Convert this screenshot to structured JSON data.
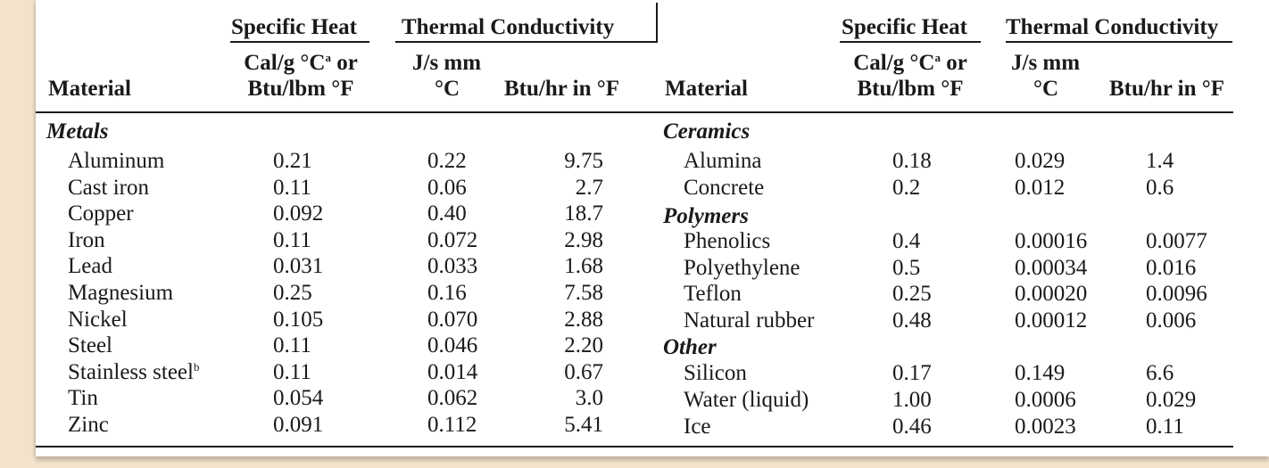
{
  "headers": {
    "group_specific_heat": "Specific Heat",
    "group_thermal_conductivity": "Thermal Conductivity",
    "material": "Material",
    "cal_line1": "Cal/g °C",
    "cal_sup": "a",
    "cal_or": " or",
    "cal_line2": "Btu/lbm °F",
    "js_line1": "J/s mm",
    "js_line2": "°C",
    "btu": "Btu/hr in °F"
  },
  "left": {
    "section": "Metals",
    "rows": [
      {
        "name": "Aluminum",
        "sup": "",
        "sh": "0.21",
        "js": "0.22",
        "btu": "9.75"
      },
      {
        "name": "Cast iron",
        "sup": "",
        "sh": "0.11",
        "js": "0.06",
        "btu": "2.7"
      },
      {
        "name": "Copper",
        "sup": "",
        "sh": "0.092",
        "js": "0.40",
        "btu": "18.7"
      },
      {
        "name": "Iron",
        "sup": "",
        "sh": "0.11",
        "js": "0.072",
        "btu": "2.98"
      },
      {
        "name": "Lead",
        "sup": "",
        "sh": "0.031",
        "js": "0.033",
        "btu": "1.68"
      },
      {
        "name": "Magnesium",
        "sup": "",
        "sh": "0.25",
        "js": "0.16",
        "btu": "7.58"
      },
      {
        "name": "Nickel",
        "sup": "",
        "sh": "0.105",
        "js": "0.070",
        "btu": "2.88"
      },
      {
        "name": "Steel",
        "sup": "",
        "sh": "0.11",
        "js": "0.046",
        "btu": "2.20"
      },
      {
        "name": "Stainless steel",
        "sup": "b",
        "sh": "0.11",
        "js": "0.014",
        "btu": "0.67"
      },
      {
        "name": "Tin",
        "sup": "",
        "sh": "0.054",
        "js": "0.062",
        "btu": "3.0"
      },
      {
        "name": "Zinc",
        "sup": "",
        "sh": "0.091",
        "js": "0.112",
        "btu": "5.41"
      }
    ]
  },
  "right": {
    "sections": {
      "ceramics": "Ceramics",
      "polymers": "Polymers",
      "other": "Other"
    },
    "rows": [
      {
        "name": "Alumina",
        "sh": "0.18",
        "js": "0.029",
        "btu": "1.4"
      },
      {
        "name": "Concrete",
        "sh": "0.2",
        "js": "0.012",
        "btu": "0.6"
      },
      {
        "name": "Phenolics",
        "sh": "0.4",
        "js": "0.00016",
        "btu": "0.0077"
      },
      {
        "name": "Polyethylene",
        "sh": "0.5",
        "js": "0.00034",
        "btu": "0.016"
      },
      {
        "name": "Teflon",
        "sh": "0.25",
        "js": "0.00020",
        "btu": "0.0096"
      },
      {
        "name": "Natural rubber",
        "sh": "0.48",
        "js": "0.00012",
        "btu": "0.006"
      },
      {
        "name": "Silicon",
        "sh": "0.17",
        "js": "0.149",
        "btu": "6.6"
      },
      {
        "name": "Water (liquid)",
        "sh": "1.00",
        "js": "0.0006",
        "btu": "0.029"
      },
      {
        "name": "Ice",
        "sh": "0.46",
        "js": "0.0023",
        "btu": "0.11"
      }
    ]
  }
}
